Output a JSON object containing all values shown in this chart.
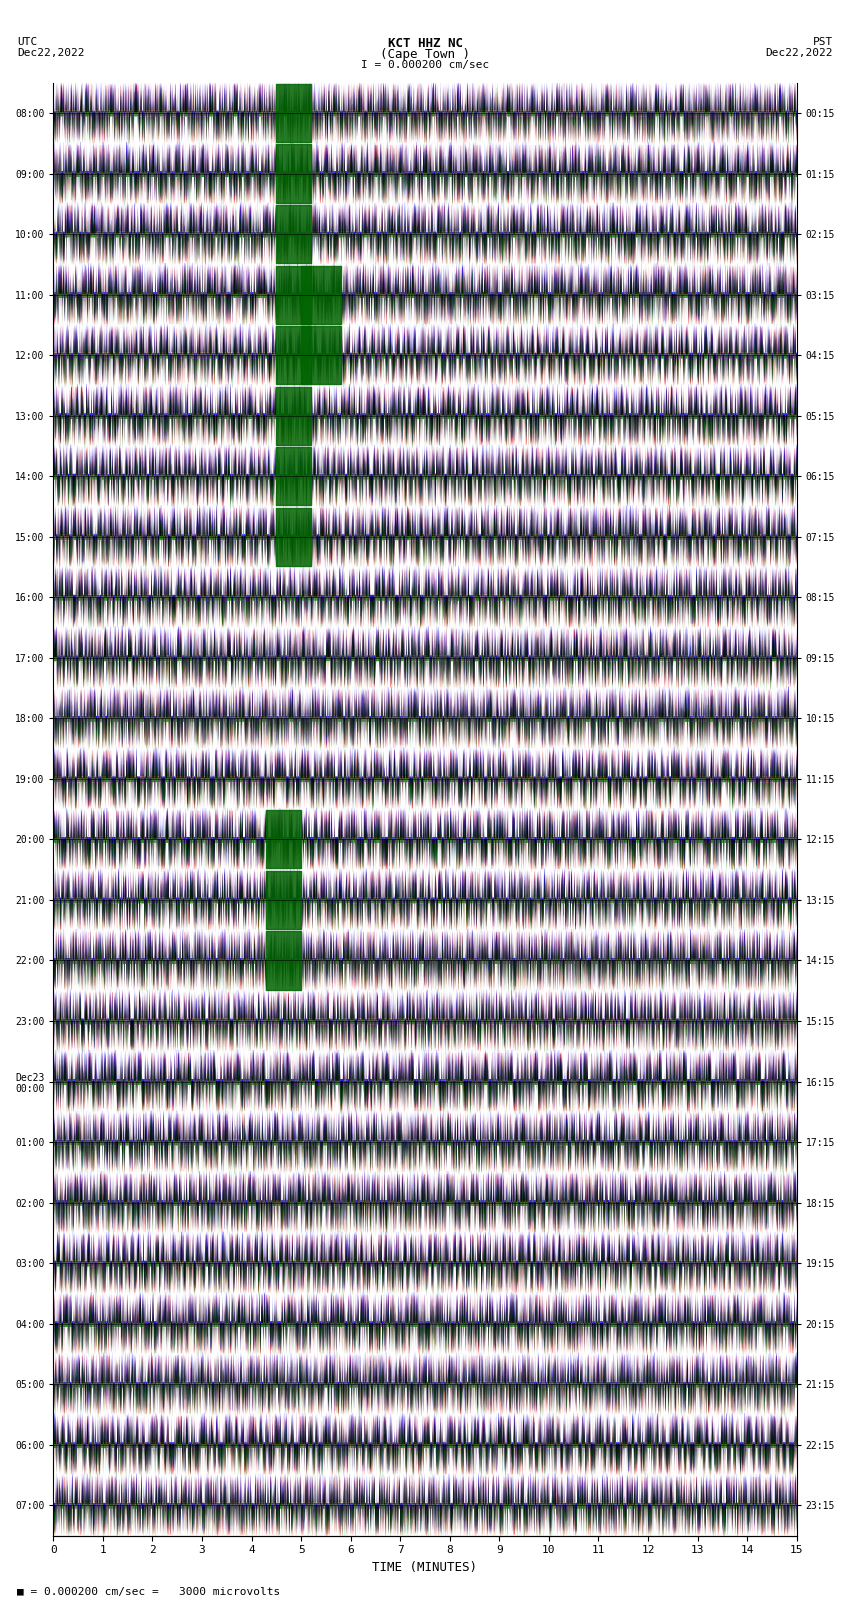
{
  "title_line1": "KCT HHZ NC",
  "title_line2": "(Cape Town )",
  "scale_label": "I = 0.000200 cm/sec",
  "footer_label": "■ = 0.000200 cm/sec =   3000 microvolts",
  "utc_label": "UTC",
  "utc_date": "Dec22,2022",
  "pst_label": "PST",
  "pst_date": "Dec22,2022",
  "xlabel": "TIME (MINUTES)",
  "xlim": [
    0,
    15
  ],
  "xticks": [
    0,
    1,
    2,
    3,
    4,
    5,
    6,
    7,
    8,
    9,
    10,
    11,
    12,
    13,
    14,
    15
  ],
  "left_yticks_labels": [
    "08:00",
    "09:00",
    "10:00",
    "11:00",
    "12:00",
    "13:00",
    "14:00",
    "15:00",
    "16:00",
    "17:00",
    "18:00",
    "19:00",
    "20:00",
    "21:00",
    "22:00",
    "23:00",
    "Dec23\n00:00",
    "01:00",
    "02:00",
    "03:00",
    "04:00",
    "05:00",
    "06:00",
    "07:00"
  ],
  "right_yticks_labels": [
    "00:15",
    "01:15",
    "02:15",
    "03:15",
    "04:15",
    "05:15",
    "06:15",
    "07:15",
    "08:15",
    "09:15",
    "10:15",
    "11:15",
    "12:15",
    "13:15",
    "14:15",
    "15:15",
    "16:15",
    "17:15",
    "18:15",
    "19:15",
    "20:15",
    "21:15",
    "22:15",
    "23:15"
  ],
  "num_rows": 24,
  "bg_color": "white",
  "trace_colors": [
    "red",
    "blue",
    "green",
    "black"
  ],
  "figsize": [
    8.5,
    16.13
  ],
  "dpi": 100,
  "seed": 42
}
